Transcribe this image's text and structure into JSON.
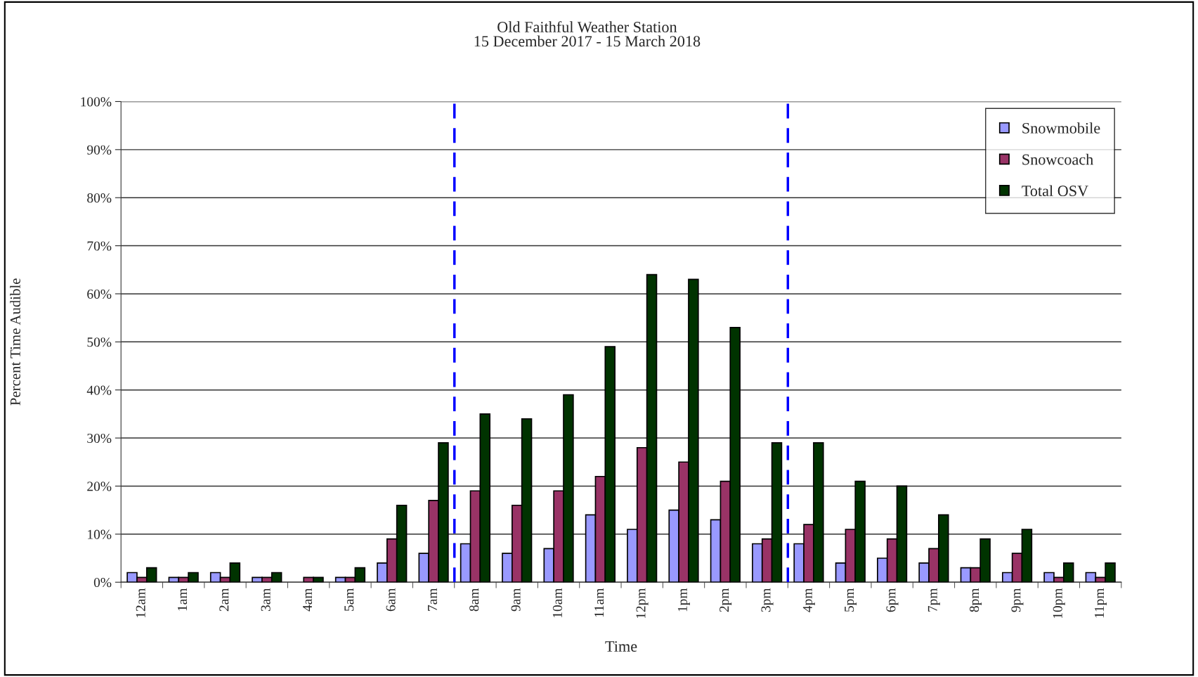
{
  "chart_data": {
    "type": "bar",
    "title": "Old Faithful Weather Station",
    "subtitle": "15 December 2017 - 15 March 2018",
    "xlabel": "Time",
    "ylabel": "Percent Time Audible",
    "categories": [
      "12am",
      "1am",
      "2am",
      "3am",
      "4am",
      "5am",
      "6am",
      "7am",
      "8am",
      "9am",
      "10am",
      "11am",
      "12pm",
      "1pm",
      "2pm",
      "3pm",
      "4pm",
      "5pm",
      "6pm",
      "7pm",
      "8pm",
      "9pm",
      "10pm",
      "11pm"
    ],
    "series": [
      {
        "name": "Snowmobile",
        "color": "#9999ff",
        "values": [
          2,
          1,
          2,
          1,
          0,
          1,
          4,
          6,
          8,
          6,
          7,
          14,
          11,
          15,
          13,
          8,
          8,
          4,
          5,
          4,
          3,
          2,
          2,
          2
        ]
      },
      {
        "name": "Snowcoach",
        "color": "#993366",
        "values": [
          1,
          1,
          1,
          1,
          1,
          1,
          9,
          17,
          19,
          16,
          19,
          22,
          28,
          25,
          21,
          9,
          12,
          11,
          9,
          7,
          3,
          6,
          1,
          1
        ]
      },
      {
        "name": "Total OSV",
        "color": "#003300",
        "values": [
          3,
          2,
          4,
          2,
          1,
          3,
          16,
          29,
          35,
          34,
          39,
          49,
          64,
          63,
          53,
          29,
          29,
          21,
          20,
          14,
          9,
          11,
          4,
          4
        ]
      }
    ],
    "ylim": [
      0,
      100
    ],
    "yticks": [
      {
        "value": 0,
        "label": "0%"
      },
      {
        "value": 10,
        "label": "10%"
      },
      {
        "value": 20,
        "label": "20%"
      },
      {
        "value": 30,
        "label": "30%"
      },
      {
        "value": 40,
        "label": "40%"
      },
      {
        "value": 50,
        "label": "50%"
      },
      {
        "value": 60,
        "label": "60%"
      },
      {
        "value": 70,
        "label": "70%"
      },
      {
        "value": 80,
        "label": "80%"
      },
      {
        "value": 90,
        "label": "90%"
      },
      {
        "value": 100,
        "label": "100%"
      }
    ],
    "grid": "y",
    "legend": "top right"
  }
}
